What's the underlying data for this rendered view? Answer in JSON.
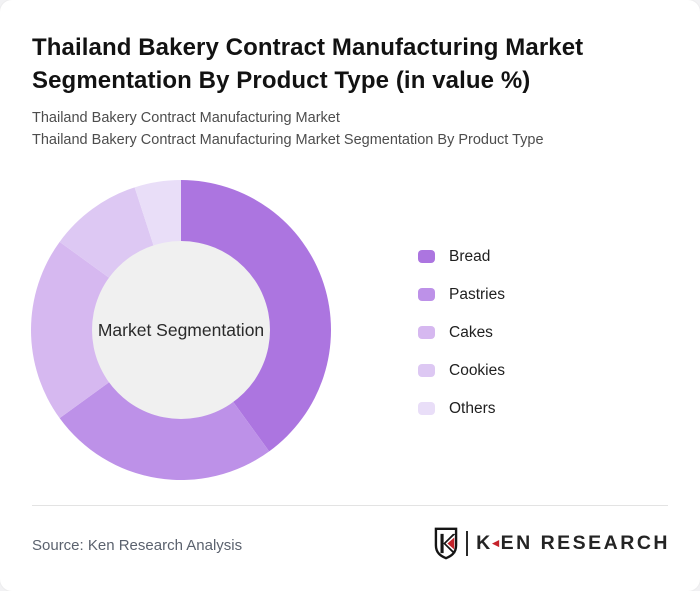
{
  "header": {
    "title": "Thailand Bakery Contract Manufacturing Market Segmentation By Product Type (in value %)",
    "subtitle_line1": "Thailand Bakery Contract Manufacturing Market",
    "subtitle_line2": "Thailand Bakery Contract Manufacturing Market Segmentation By Product Type"
  },
  "chart_data": {
    "type": "pie",
    "subtype": "donut",
    "title": "Thailand Bakery Contract Manufacturing Market Segmentation By Product Type (in value %)",
    "center_label": "Market Segmentation",
    "categories": [
      "Bread",
      "Pastries",
      "Cakes",
      "Cookies",
      "Others"
    ],
    "values": [
      40,
      25,
      20,
      10,
      5
    ],
    "unit": "value %",
    "colors": [
      "#ac75e0",
      "#bd91e8",
      "#d6b8f0",
      "#ddc8f3",
      "#e9def8"
    ],
    "hole_color": "#f0f0f0",
    "legend_position": "right",
    "start_angle_deg": 0,
    "clockwise": true
  },
  "footer": {
    "source": "Source: Ken Research Analysis",
    "logo": {
      "text_k": "K",
      "triangle_glyph": "◄",
      "text_rest": "EN RESEARCH",
      "red_color": "#c5232b",
      "dark_color": "#242424"
    }
  }
}
